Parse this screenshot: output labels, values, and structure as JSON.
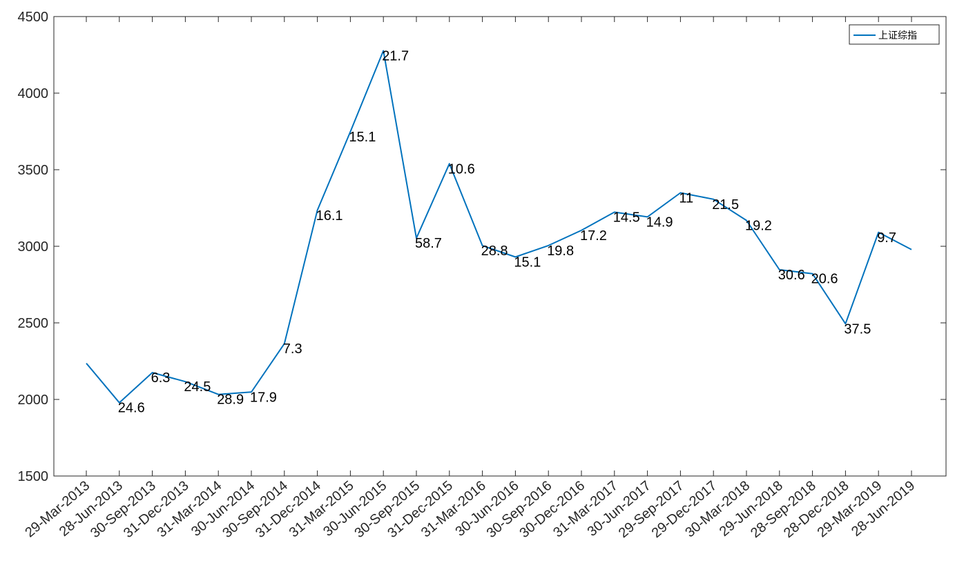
{
  "chart_data": {
    "type": "line",
    "x": [
      "29-Mar-2013",
      "28-Jun-2013",
      "30-Sep-2013",
      "31-Dec-2013",
      "31-Mar-2014",
      "30-Jun-2014",
      "30-Sep-2014",
      "31-Dec-2014",
      "31-Mar-2015",
      "30-Jun-2015",
      "30-Sep-2015",
      "31-Dec-2015",
      "31-Mar-2016",
      "30-Jun-2016",
      "30-Sep-2016",
      "30-Dec-2016",
      "31-Mar-2017",
      "30-Jun-2017",
      "29-Sep-2017",
      "29-Dec-2017",
      "30-Mar-2018",
      "29-Jun-2018",
      "28-Sep-2018",
      "28-Dec-2018",
      "29-Mar-2019",
      "28-Jun-2019"
    ],
    "series": [
      {
        "name": "上证综指",
        "color": "#0072BD",
        "values": [
          2236,
          1979,
          2175,
          2116,
          2033,
          2048,
          2364,
          3235,
          3748,
          4277,
          3053,
          3539,
          3004,
          2930,
          3005,
          3104,
          3223,
          3192,
          3349,
          3307,
          3169,
          2847,
          2821,
          2494,
          3091,
          2979
        ]
      }
    ],
    "point_labels": [
      "",
      "24.6",
      "6.3",
      "24.5",
      "28.9",
      "17.9",
      "7.3",
      "16.1",
      "15.1",
      "21.7",
      "58.7",
      "10.6",
      "28.8",
      "15.1",
      "19.8",
      "17.2",
      "14.5",
      "14.9",
      "11",
      "21.5",
      "19.2",
      "30.6",
      "20.6",
      "37.5",
      "9.7",
      ""
    ],
    "ylim": [
      1500,
      4500
    ],
    "yticks": [
      "1500",
      "2000",
      "2500",
      "3000",
      "3500",
      "4000",
      "4500"
    ],
    "title": "",
    "xlabel": "",
    "ylabel": "",
    "grid": false,
    "legend": {
      "position": "top-right",
      "entries": [
        "上证综指"
      ]
    }
  }
}
